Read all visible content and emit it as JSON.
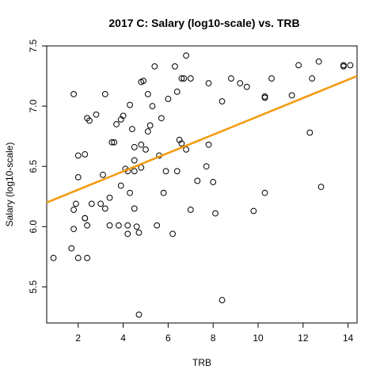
{
  "chart_data": {
    "type": "scatter",
    "title": "2017 C: Salary (log10-scale) vs. TRB",
    "xlabel": "TRB",
    "ylabel": "Salary (log10-scale)",
    "xlim": [
      0.6,
      14.4
    ],
    "ylim": [
      5.2,
      7.5
    ],
    "x_ticks": [
      2,
      4,
      6,
      8,
      10,
      12,
      14
    ],
    "y_ticks": [
      5.5,
      6.0,
      6.5,
      7.0,
      7.5
    ],
    "x_tick_labels": [
      "2",
      "4",
      "6",
      "8",
      "10",
      "12",
      "14"
    ],
    "y_tick_labels": [
      "5.5",
      "6.0",
      "6.5",
      "7.0",
      "7.5"
    ],
    "grid": false,
    "legend": "none",
    "colors": {
      "points": "#000000",
      "fit": "#f39c12"
    },
    "fit_line": {
      "x": [
        0.6,
        14.4
      ],
      "y": [
        6.2,
        7.25
      ]
    },
    "series": [
      {
        "points": [
          [
            0.9,
            5.74
          ],
          [
            1.7,
            5.82
          ],
          [
            1.8,
            5.98
          ],
          [
            1.8,
            6.14
          ],
          [
            1.9,
            6.19
          ],
          [
            2.0,
            5.74
          ],
          [
            2.0,
            6.41
          ],
          [
            2.0,
            6.59
          ],
          [
            1.8,
            7.1
          ],
          [
            2.3,
            6.07
          ],
          [
            2.3,
            6.07
          ],
          [
            2.3,
            6.6
          ],
          [
            2.4,
            5.74
          ],
          [
            2.4,
            6.01
          ],
          [
            2.4,
            6.9
          ],
          [
            2.5,
            6.88
          ],
          [
            2.6,
            6.19
          ],
          [
            2.8,
            6.93
          ],
          [
            3.0,
            6.19
          ],
          [
            3.1,
            6.43
          ],
          [
            3.2,
            6.15
          ],
          [
            3.2,
            7.1
          ],
          [
            3.4,
            6.24
          ],
          [
            3.4,
            6.01
          ],
          [
            3.5,
            6.7
          ],
          [
            3.6,
            6.7
          ],
          [
            3.7,
            6.85
          ],
          [
            3.8,
            6.01
          ],
          [
            3.9,
            6.34
          ],
          [
            3.9,
            6.89
          ],
          [
            4.0,
            6.92
          ],
          [
            4.1,
            6.48
          ],
          [
            4.2,
            5.94
          ],
          [
            4.2,
            6.01
          ],
          [
            4.2,
            6.46
          ],
          [
            4.3,
            6.28
          ],
          [
            4.3,
            7.01
          ],
          [
            4.4,
            6.81
          ],
          [
            4.5,
            6.66
          ],
          [
            4.5,
            6.55
          ],
          [
            4.5,
            6.46
          ],
          [
            4.5,
            6.15
          ],
          [
            4.6,
            6.0
          ],
          [
            4.7,
            5.95
          ],
          [
            4.7,
            5.27
          ],
          [
            4.8,
            6.49
          ],
          [
            4.8,
            6.68
          ],
          [
            4.8,
            7.2
          ],
          [
            4.9,
            7.21
          ],
          [
            5.0,
            6.64
          ],
          [
            5.1,
            6.79
          ],
          [
            5.2,
            6.84
          ],
          [
            5.1,
            7.1
          ],
          [
            5.3,
            7.0
          ],
          [
            5.4,
            7.33
          ],
          [
            5.5,
            6.01
          ],
          [
            5.6,
            6.59
          ],
          [
            5.7,
            6.9
          ],
          [
            5.8,
            6.28
          ],
          [
            5.9,
            6.46
          ],
          [
            6.0,
            7.06
          ],
          [
            6.2,
            5.94
          ],
          [
            6.3,
            7.33
          ],
          [
            6.4,
            6.46
          ],
          [
            6.4,
            7.12
          ],
          [
            6.5,
            6.72
          ],
          [
            6.6,
            6.69
          ],
          [
            6.6,
            7.23
          ],
          [
            6.7,
            7.23
          ],
          [
            6.8,
            7.42
          ],
          [
            6.8,
            6.64
          ],
          [
            7.0,
            6.14
          ],
          [
            7.0,
            7.23
          ],
          [
            7.3,
            6.38
          ],
          [
            7.7,
            6.5
          ],
          [
            7.8,
            6.68
          ],
          [
            7.8,
            7.19
          ],
          [
            8.0,
            6.37
          ],
          [
            8.1,
            6.11
          ],
          [
            8.4,
            5.39
          ],
          [
            8.4,
            7.04
          ],
          [
            8.8,
            7.23
          ],
          [
            9.2,
            7.19
          ],
          [
            9.5,
            7.16
          ],
          [
            9.8,
            6.13
          ],
          [
            10.3,
            7.07
          ],
          [
            10.3,
            7.08
          ],
          [
            10.3,
            6.28
          ],
          [
            10.6,
            7.23
          ],
          [
            11.5,
            7.09
          ],
          [
            11.8,
            7.34
          ],
          [
            12.3,
            6.78
          ],
          [
            12.4,
            7.23
          ],
          [
            12.7,
            7.37
          ],
          [
            12.8,
            6.33
          ],
          [
            13.8,
            7.34
          ],
          [
            13.8,
            7.33
          ],
          [
            14.1,
            7.34
          ]
        ]
      }
    ]
  }
}
